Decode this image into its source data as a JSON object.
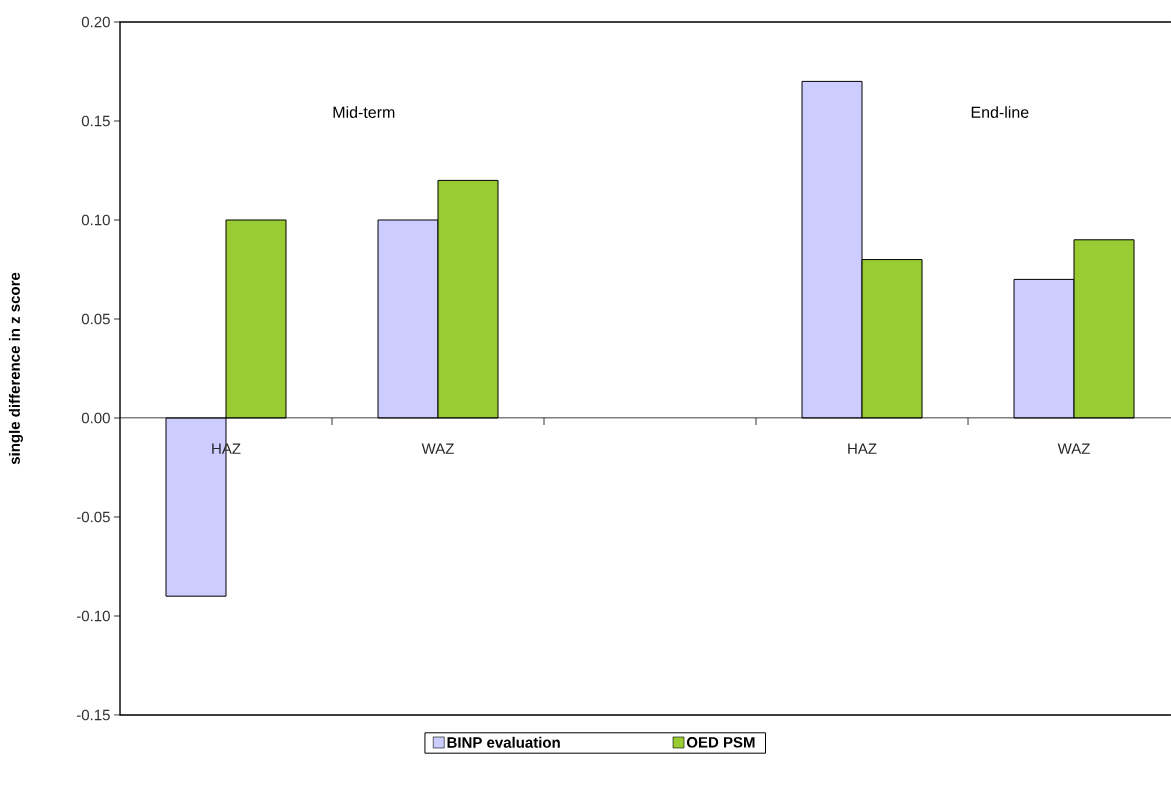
{
  "chart_data": {
    "type": "bar",
    "ylabel": "single difference in z score",
    "categories": [
      "HAZ",
      "WAZ",
      null,
      "HAZ",
      "WAZ"
    ],
    "series": [
      {
        "name": "BINP evaluation",
        "color": "#ccccff",
        "values": [
          -0.09,
          0.1,
          null,
          0.17,
          0.07
        ]
      },
      {
        "name": "OED PSM",
        "color": "#99cc33",
        "values": [
          0.1,
          0.12,
          null,
          0.08,
          0.09
        ]
      }
    ],
    "ylim": [
      -0.15,
      0.2
    ],
    "yticks": [
      {
        "value": -0.15,
        "label": "-0.15"
      },
      {
        "value": -0.1,
        "label": "-0.10"
      },
      {
        "value": -0.05,
        "label": "-0.05"
      },
      {
        "value": 0,
        "label": "0.00"
      },
      {
        "value": 0.05,
        "label": "0.05"
      },
      {
        "value": 0.1,
        "label": "0.10"
      },
      {
        "value": 0.15,
        "label": "0.15"
      },
      {
        "value": 0.2,
        "label": "0.20"
      }
    ],
    "annotations": [
      "Mid-term",
      "End-line"
    ],
    "legend": "bottom"
  }
}
